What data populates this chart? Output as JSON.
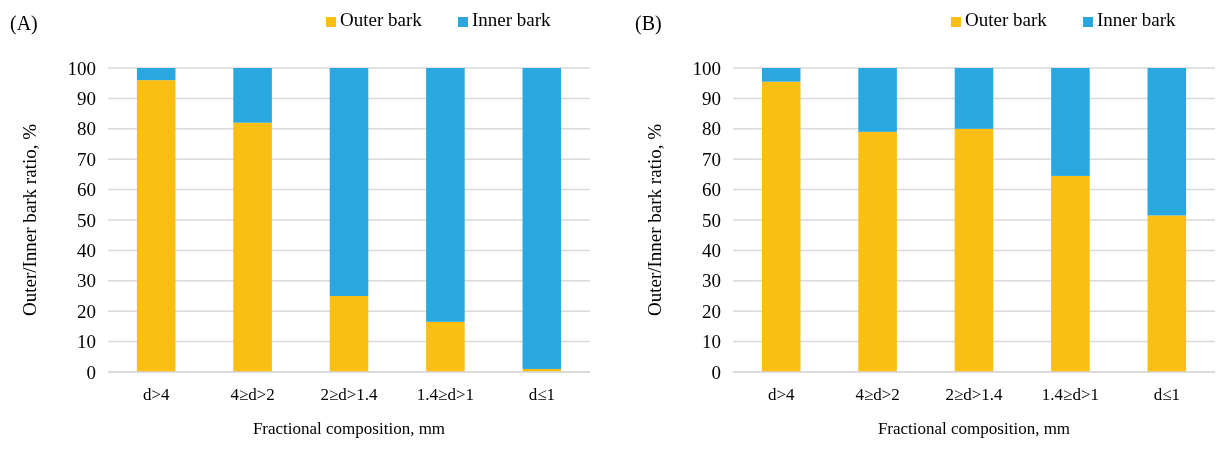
{
  "chart_data": [
    {
      "type": "bar",
      "title": "(A)",
      "xlabel": "Fractional composition, mm",
      "ylabel": "Outer/Inner bark ratio, %",
      "categories": [
        "d>4",
        "4≥d>2",
        "2≥d>1.4",
        "1.4≥d>1",
        "d≤1"
      ],
      "stacked": true,
      "ylim": [
        0,
        100
      ],
      "yticks": [
        0,
        10,
        20,
        30,
        40,
        50,
        60,
        70,
        80,
        90,
        100
      ],
      "grid": "y",
      "legend": "top right",
      "series": [
        {
          "name": "Outer bark",
          "color": "#fbbe12",
          "values": [
            96,
            82,
            25,
            16.5,
            1
          ]
        },
        {
          "name": "Inner bark",
          "color": "#29a8e0",
          "values": [
            4,
            18,
            75,
            83.5,
            99
          ]
        }
      ]
    },
    {
      "type": "bar",
      "title": "(B)",
      "xlabel": "Fractional composition, mm",
      "ylabel": "Outer/Inner bark ratio, %",
      "categories": [
        "d>4",
        "4≥d>2",
        "2≥d>1.4",
        "1.4≥d>1",
        "d≤1"
      ],
      "stacked": true,
      "ylim": [
        0,
        100
      ],
      "yticks": [
        0,
        10,
        20,
        30,
        40,
        50,
        60,
        70,
        80,
        90,
        100
      ],
      "grid": "y",
      "legend": "top right",
      "series": [
        {
          "name": "Outer bark",
          "color": "#fbbe12",
          "values": [
            95.5,
            79,
            80,
            64.5,
            51.5
          ]
        },
        {
          "name": "Inner bark",
          "color": "#29a8e0",
          "values": [
            4.5,
            21,
            20,
            35.5,
            48.5
          ]
        }
      ]
    }
  ]
}
